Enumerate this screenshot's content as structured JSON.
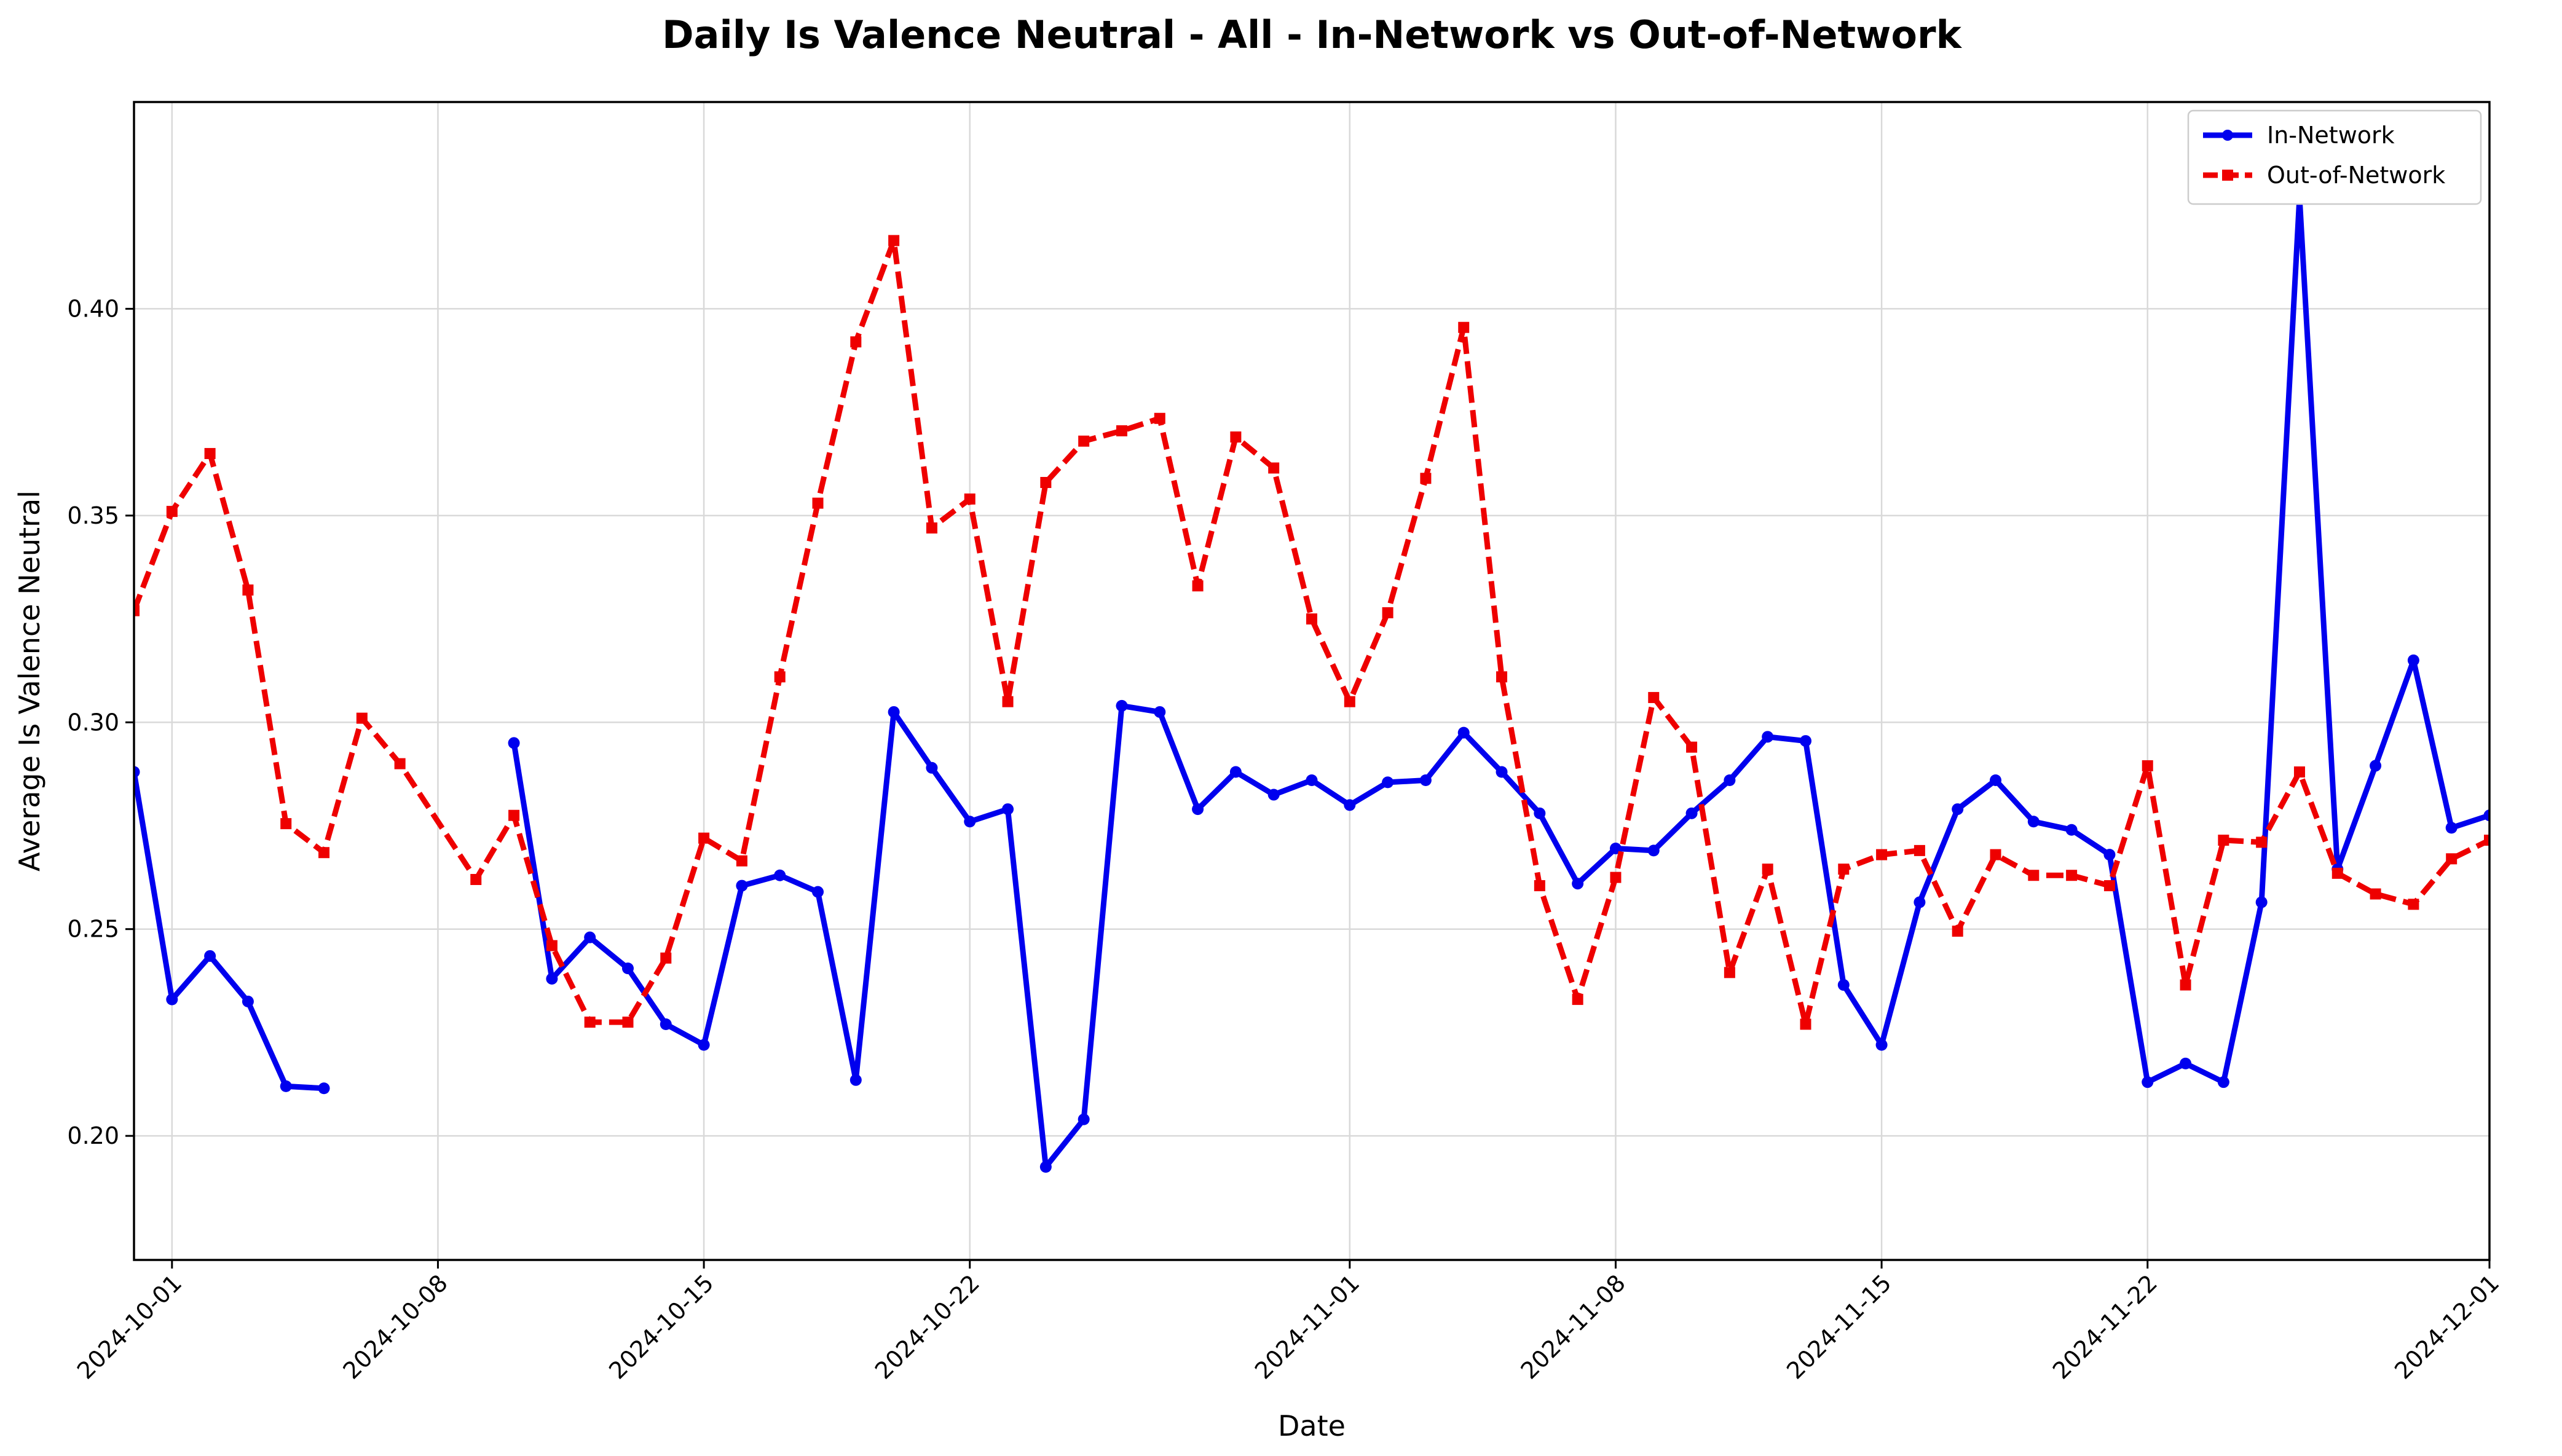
{
  "chart_data": {
    "type": "line",
    "title": "Daily Is Valence Neutral - All - In-Network vs Out-of-Network",
    "xlabel": "Date",
    "ylabel": "Average Is Valence Neutral",
    "xlim": [
      "2024-09-30",
      "2024-12-01"
    ],
    "ylim": [
      0.17,
      0.45
    ],
    "x_ticks": [
      "2024-10-01",
      "2024-10-08",
      "2024-10-15",
      "2024-10-22",
      "2024-11-01",
      "2024-11-08",
      "2024-11-15",
      "2024-11-22",
      "2024-12-01"
    ],
    "y_ticks": [
      "0.20",
      "0.25",
      "0.30",
      "0.35",
      "0.40"
    ],
    "grid": true,
    "legend_position": "top-right",
    "series": [
      {
        "name": "In-Network",
        "color": "#0000ee",
        "style": "solid",
        "marker": "circle",
        "points": [
          [
            "2024-09-30",
            0.288
          ],
          [
            "2024-10-01",
            0.233
          ],
          [
            "2024-10-02",
            0.2435
          ],
          [
            "2024-10-03",
            0.2325
          ],
          [
            "2024-10-04",
            0.212
          ],
          [
            "2024-10-05",
            0.2115
          ],
          [
            "2024-10-06",
            null
          ],
          [
            "2024-10-07",
            null
          ],
          [
            "2024-10-08",
            null
          ],
          [
            "2024-10-09",
            null
          ],
          [
            "2024-10-10",
            0.295
          ],
          [
            "2024-10-11",
            0.238
          ],
          [
            "2024-10-12",
            0.248
          ],
          [
            "2024-10-13",
            0.2405
          ],
          [
            "2024-10-14",
            0.227
          ],
          [
            "2024-10-15",
            0.222
          ],
          [
            "2024-10-16",
            0.2605
          ],
          [
            "2024-10-17",
            0.263
          ],
          [
            "2024-10-18",
            0.259
          ],
          [
            "2024-10-19",
            0.2135
          ],
          [
            "2024-10-20",
            0.3025
          ],
          [
            "2024-10-21",
            0.289
          ],
          [
            "2024-10-22",
            0.276
          ],
          [
            "2024-10-23",
            0.279
          ],
          [
            "2024-10-24",
            0.1925
          ],
          [
            "2024-10-25",
            0.204
          ],
          [
            "2024-10-26",
            0.304
          ],
          [
            "2024-10-27",
            0.3025
          ],
          [
            "2024-10-28",
            0.279
          ],
          [
            "2024-10-29",
            0.288
          ],
          [
            "2024-10-30",
            0.2825
          ],
          [
            "2024-10-31",
            0.286
          ],
          [
            "2024-11-01",
            0.28
          ],
          [
            "2024-11-02",
            0.2855
          ],
          [
            "2024-11-03",
            0.286
          ],
          [
            "2024-11-04",
            0.2975
          ],
          [
            "2024-11-05",
            0.288
          ],
          [
            "2024-11-06",
            0.278
          ],
          [
            "2024-11-07",
            0.261
          ],
          [
            "2024-11-08",
            0.2695
          ],
          [
            "2024-11-09",
            0.269
          ],
          [
            "2024-11-10",
            0.278
          ],
          [
            "2024-11-11",
            0.286
          ],
          [
            "2024-11-12",
            0.2965
          ],
          [
            "2024-11-13",
            0.2955
          ],
          [
            "2024-11-14",
            0.2365
          ],
          [
            "2024-11-15",
            0.222
          ],
          [
            "2024-11-16",
            0.2565
          ],
          [
            "2024-11-17",
            0.279
          ],
          [
            "2024-11-18",
            0.286
          ],
          [
            "2024-11-19",
            0.276
          ],
          [
            "2024-11-20",
            0.274
          ],
          [
            "2024-11-21",
            0.268
          ],
          [
            "2024-11-22",
            0.213
          ],
          [
            "2024-11-23",
            0.2175
          ],
          [
            "2024-11-24",
            0.213
          ],
          [
            "2024-11-25",
            0.2565
          ],
          [
            "2024-11-26",
            0.427
          ],
          [
            "2024-11-27",
            0.2645
          ],
          [
            "2024-11-28",
            0.2895
          ],
          [
            "2024-11-29",
            0.315
          ],
          [
            "2024-11-30",
            0.2745
          ],
          [
            "2024-12-01",
            0.2775
          ]
        ]
      },
      {
        "name": "Out-of-Network",
        "color": "#ee0000",
        "style": "dashed",
        "marker": "square",
        "points": [
          [
            "2024-09-30",
            0.327
          ],
          [
            "2024-10-01",
            0.351
          ],
          [
            "2024-10-02",
            0.365
          ],
          [
            "2024-10-03",
            0.332
          ],
          [
            "2024-10-04",
            0.2755
          ],
          [
            "2024-10-05",
            0.2685
          ],
          [
            "2024-10-06",
            0.301
          ],
          [
            "2024-10-07",
            0.29
          ],
          [
            "2024-10-09",
            0.262
          ],
          [
            "2024-10-10",
            0.2775
          ],
          [
            "2024-10-11",
            0.246
          ],
          [
            "2024-10-12",
            0.2275
          ],
          [
            "2024-10-13",
            0.2275
          ],
          [
            "2024-10-14",
            0.243
          ],
          [
            "2024-10-15",
            0.272
          ],
          [
            "2024-10-16",
            0.2665
          ],
          [
            "2024-10-17",
            0.311
          ],
          [
            "2024-10-18",
            0.353
          ],
          [
            "2024-10-19",
            0.392
          ],
          [
            "2024-10-20",
            0.4165
          ],
          [
            "2024-10-21",
            0.347
          ],
          [
            "2024-10-22",
            0.354
          ],
          [
            "2024-10-23",
            0.305
          ],
          [
            "2024-10-24",
            0.358
          ],
          [
            "2024-10-25",
            0.368
          ],
          [
            "2024-10-26",
            0.3705
          ],
          [
            "2024-10-27",
            0.3735
          ],
          [
            "2024-10-28",
            0.333
          ],
          [
            "2024-10-29",
            0.369
          ],
          [
            "2024-10-30",
            0.3615
          ],
          [
            "2024-10-31",
            0.325
          ],
          [
            "2024-11-01",
            0.305
          ],
          [
            "2024-11-02",
            0.3265
          ],
          [
            "2024-11-03",
            0.359
          ],
          [
            "2024-11-04",
            0.3955
          ],
          [
            "2024-11-05",
            0.311
          ],
          [
            "2024-11-06",
            0.2605
          ],
          [
            "2024-11-07",
            0.233
          ],
          [
            "2024-11-08",
            0.2625
          ],
          [
            "2024-11-09",
            0.306
          ],
          [
            "2024-11-10",
            0.294
          ],
          [
            "2024-11-11",
            0.2395
          ],
          [
            "2024-11-12",
            0.2645
          ],
          [
            "2024-11-13",
            0.227
          ],
          [
            "2024-11-14",
            0.2645
          ],
          [
            "2024-11-15",
            0.268
          ],
          [
            "2024-11-16",
            0.269
          ],
          [
            "2024-11-17",
            0.2495
          ],
          [
            "2024-11-18",
            0.268
          ],
          [
            "2024-11-19",
            0.263
          ],
          [
            "2024-11-20",
            0.263
          ],
          [
            "2024-11-21",
            0.2605
          ],
          [
            "2024-11-22",
            0.2895
          ],
          [
            "2024-11-23",
            0.2365
          ],
          [
            "2024-11-24",
            0.2715
          ],
          [
            "2024-11-25",
            0.271
          ],
          [
            "2024-11-26",
            0.288
          ],
          [
            "2024-11-27",
            0.2635
          ],
          [
            "2024-11-28",
            0.2585
          ],
          [
            "2024-11-29",
            0.256
          ],
          [
            "2024-11-30",
            0.267
          ],
          [
            "2024-12-01",
            0.2715
          ]
        ]
      }
    ]
  }
}
